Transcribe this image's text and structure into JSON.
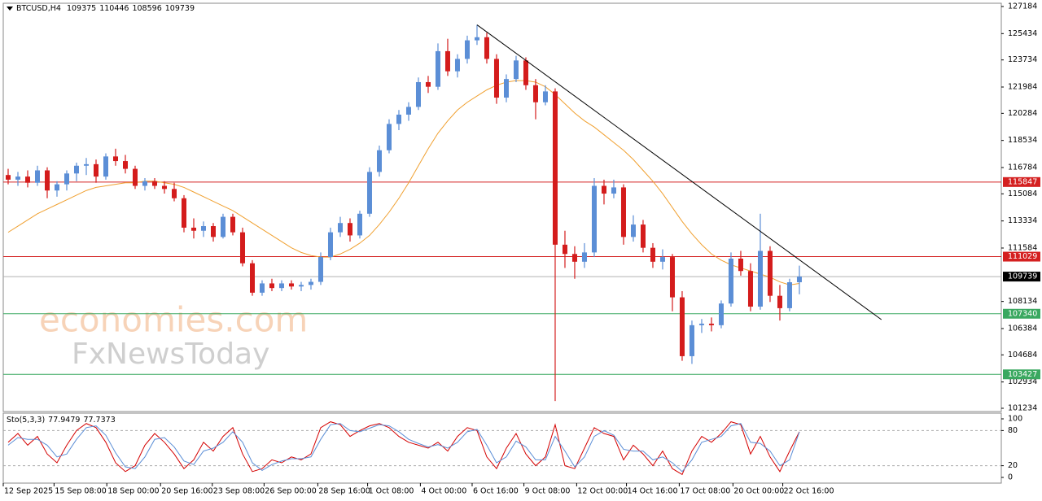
{
  "chart_data": {
    "type": "candlestick",
    "title": "BTCUSD,H4",
    "watermark": [
      "economies.com",
      "FxNewsToday"
    ],
    "colors": {
      "up": "#5b8ed6",
      "down": "#d41c1c"
    },
    "candles": [
      [
        116300,
        116700,
        115700,
        116000
      ],
      [
        116000,
        116500,
        115600,
        116200
      ],
      [
        116200,
        116600,
        115500,
        115800
      ],
      [
        115800,
        116900,
        115600,
        116600
      ],
      [
        116600,
        116800,
        114800,
        115300
      ],
      [
        115300,
        115900,
        114900,
        115700
      ],
      [
        115700,
        116600,
        115300,
        116400
      ],
      [
        116400,
        117100,
        115900,
        116900
      ],
      [
        116900,
        117400,
        116300,
        117000
      ],
      [
        117000,
        117300,
        115800,
        116200
      ],
      [
        116200,
        117700,
        116000,
        117500
      ],
      [
        117500,
        118000,
        116900,
        117200
      ],
      [
        117200,
        117600,
        116400,
        116700
      ],
      [
        116700,
        116900,
        115400,
        115600
      ],
      [
        115600,
        116100,
        115300,
        115900
      ],
      [
        115900,
        116100,
        115400,
        115600
      ],
      [
        115600,
        115900,
        115100,
        115400
      ],
      [
        115400,
        115800,
        114600,
        114800
      ],
      [
        114800,
        115000,
        112600,
        112900
      ],
      [
        112900,
        113500,
        112200,
        112700
      ],
      [
        112700,
        113300,
        112300,
        113000
      ],
      [
        113000,
        113200,
        112000,
        112300
      ],
      [
        112300,
        113800,
        112200,
        113600
      ],
      [
        113600,
        113800,
        112400,
        112600
      ],
      [
        112600,
        112900,
        110400,
        110600
      ],
      [
        110600,
        110800,
        108500,
        108700
      ],
      [
        108700,
        109500,
        108500,
        109300
      ],
      [
        109300,
        109600,
        108800,
        109000
      ],
      [
        109000,
        109500,
        108800,
        109300
      ],
      [
        109300,
        109500,
        108900,
        109100
      ],
      [
        109100,
        109400,
        108800,
        109200
      ],
      [
        109200,
        109600,
        108900,
        109400
      ],
      [
        109400,
        111300,
        109200,
        111000
      ],
      [
        111000,
        112900,
        110800,
        112600
      ],
      [
        112600,
        113600,
        112300,
        113200
      ],
      [
        113200,
        113500,
        112000,
        112400
      ],
      [
        112400,
        114000,
        112200,
        113800
      ],
      [
        113800,
        116800,
        113600,
        116500
      ],
      [
        116500,
        118200,
        116200,
        117900
      ],
      [
        117900,
        119900,
        117700,
        119600
      ],
      [
        119600,
        120500,
        119200,
        120200
      ],
      [
        120200,
        121000,
        119800,
        120700
      ],
      [
        120700,
        122600,
        120500,
        122300
      ],
      [
        122300,
        122700,
        121600,
        122000
      ],
      [
        122000,
        124800,
        121800,
        124300
      ],
      [
        124300,
        125100,
        122700,
        123000
      ],
      [
        123000,
        124100,
        122600,
        123800
      ],
      [
        123800,
        125300,
        123500,
        125000
      ],
      [
        125000,
        126000,
        124700,
        125200
      ],
      [
        125200,
        125500,
        123500,
        123800
      ],
      [
        123800,
        124100,
        120900,
        121300
      ],
      [
        121300,
        122800,
        121000,
        122500
      ],
      [
        122500,
        124000,
        122300,
        123700
      ],
      [
        123700,
        123900,
        121800,
        122100
      ],
      [
        122100,
        122500,
        119900,
        121000
      ],
      [
        121000,
        122100,
        120800,
        121700
      ],
      [
        121700,
        121900,
        101700,
        111800
      ],
      [
        111800,
        112700,
        110300,
        111200
      ],
      [
        111200,
        111700,
        109600,
        110700
      ],
      [
        110700,
        111900,
        110300,
        111300
      ],
      [
        111300,
        116100,
        111000,
        115600
      ],
      [
        115600,
        116000,
        114400,
        115100
      ],
      [
        115100,
        116000,
        114800,
        115500
      ],
      [
        115500,
        115700,
        111800,
        112300
      ],
      [
        112300,
        113700,
        112000,
        113100
      ],
      [
        113100,
        113400,
        111300,
        111600
      ],
      [
        111600,
        111900,
        110300,
        110700
      ],
      [
        110700,
        111500,
        110200,
        111000
      ],
      [
        111000,
        111200,
        107500,
        108400
      ],
      [
        108400,
        108800,
        104300,
        104600
      ],
      [
        104600,
        106900,
        104100,
        106600
      ],
      [
        106600,
        107000,
        106100,
        106700
      ],
      [
        106700,
        107100,
        106200,
        106600
      ],
      [
        106600,
        108200,
        106400,
        108000
      ],
      [
        108000,
        111300,
        107800,
        110900
      ],
      [
        110900,
        111400,
        109800,
        110100
      ],
      [
        110100,
        110600,
        107500,
        107800
      ],
      [
        107800,
        113800,
        107600,
        111400
      ],
      [
        111400,
        111700,
        108100,
        108500
      ],
      [
        108500,
        109200,
        106900,
        107700
      ],
      [
        107700,
        109600,
        107500,
        109375
      ],
      [
        109375,
        110446,
        108596,
        109739
      ]
    ],
    "ma": {
      "color": "#f0a030",
      "values": [
        112600,
        113000,
        113400,
        113800,
        114100,
        114400,
        114700,
        115000,
        115300,
        115500,
        115600,
        115700,
        115800,
        115800,
        115900,
        115900,
        115800,
        115700,
        115500,
        115200,
        114900,
        114600,
        114300,
        114000,
        113600,
        113200,
        112800,
        112400,
        112000,
        111600,
        111300,
        111100,
        111000,
        111000,
        111200,
        111500,
        111900,
        112400,
        113100,
        113900,
        114800,
        115800,
        116900,
        118000,
        119000,
        119800,
        120500,
        121000,
        121400,
        121800,
        122100,
        122300,
        122400,
        122400,
        122300,
        122000,
        121500,
        120900,
        120300,
        119800,
        119400,
        118900,
        118400,
        117900,
        117300,
        116600,
        115900,
        115100,
        114200,
        113300,
        112500,
        111800,
        111200,
        110800,
        110500,
        110300,
        110100,
        109900,
        109700,
        109400,
        109200,
        109300
      ]
    },
    "xlim": [
      -0.5,
      101.67
    ],
    "ylim": [
      101024,
      127394
    ],
    "yticks": [
      127184,
      125434,
      123734,
      121984,
      120284,
      118534,
      116784,
      115084,
      113334,
      111584,
      108134,
      106384,
      104684,
      102934,
      101234
    ],
    "xticks": [
      {
        "value": -0.5,
        "label": "12 Sep 2025"
      },
      {
        "value": 4.7,
        "label": "15 Sep 08:00"
      },
      {
        "value": 10.1,
        "label": "18 Sep 00:00"
      },
      {
        "value": 15.6,
        "label": "20 Sep 16:00"
      },
      {
        "value": 20.9,
        "label": "23 Sep 08:00"
      },
      {
        "value": 26.2,
        "label": "26 Sep 00:00"
      },
      {
        "value": 31.7,
        "label": "28 Sep 16:00"
      },
      {
        "value": 36.8,
        "label": "1 Oct 08:00"
      },
      {
        "value": 42.2,
        "label": "4 Oct 00:00"
      },
      {
        "value": 47.5,
        "label": "6 Oct 16:00"
      },
      {
        "value": 52.8,
        "label": "9 Oct 08:00"
      },
      {
        "value": 58.2,
        "label": "12 Oct 00:00"
      },
      {
        "value": 63.3,
        "label": "14 Oct 16:00"
      },
      {
        "value": 68.7,
        "label": "17 Oct 08:00"
      },
      {
        "value": 74.2,
        "label": "20 Oct 00:00"
      },
      {
        "value": 79.3,
        "label": "22 Oct 16:00"
      }
    ],
    "levels": [
      {
        "value": 115847,
        "color": "#d42020"
      },
      {
        "value": 111029,
        "color": "#d42020"
      },
      {
        "value": 107340,
        "color": "#3aa860"
      },
      {
        "value": 103427,
        "color": "#3aa860"
      }
    ],
    "last_price_color": "#b0b0b0",
    "trendline": {
      "x": [
        48,
        89.4
      ],
      "y": [
        126000,
        106960
      ],
      "color": "#000000"
    },
    "indicator": {
      "name": "Sto(5,3,3)",
      "ylim": [
        -9.7,
        109.7
      ],
      "yticks": [
        100,
        80,
        20,
        0
      ],
      "levels": [
        80,
        20
      ],
      "series": [
        {
          "color": "#d40000",
          "values": [
            60,
            75,
            55,
            70,
            40,
            25,
            55,
            80,
            92,
            85,
            60,
            25,
            10,
            20,
            55,
            75,
            60,
            40,
            15,
            30,
            60,
            45,
            70,
            85,
            40,
            10,
            15,
            30,
            25,
            35,
            30,
            40,
            85,
            95,
            90,
            70,
            80,
            88,
            92,
            85,
            70,
            60,
            55,
            50,
            60,
            45,
            70,
            85,
            80,
            35,
            15,
            50,
            75,
            40,
            20,
            35,
            90,
            20,
            15,
            50,
            85,
            75,
            70,
            30,
            55,
            40,
            20,
            45,
            15,
            5,
            45,
            70,
            60,
            75,
            95,
            90,
            40,
            70,
            35,
            10,
            45,
            77.9479
          ]
        },
        {
          "color": "#5b8ed6",
          "values": [
            55,
            68,
            65,
            65,
            55,
            35,
            40,
            65,
            85,
            88,
            72,
            42,
            18,
            15,
            35,
            65,
            68,
            52,
            28,
            22,
            45,
            50,
            60,
            78,
            60,
            25,
            12,
            22,
            28,
            32,
            32,
            35,
            65,
            90,
            92,
            80,
            78,
            84,
            90,
            88,
            78,
            65,
            58,
            52,
            56,
            50,
            60,
            78,
            82,
            55,
            25,
            35,
            62,
            52,
            30,
            30,
            70,
            45,
            18,
            35,
            70,
            80,
            72,
            48,
            45,
            45,
            30,
            35,
            25,
            10,
            30,
            60,
            65,
            70,
            88,
            92,
            60,
            58,
            45,
            20,
            30,
            77.7373
          ]
        }
      ]
    }
  }
}
